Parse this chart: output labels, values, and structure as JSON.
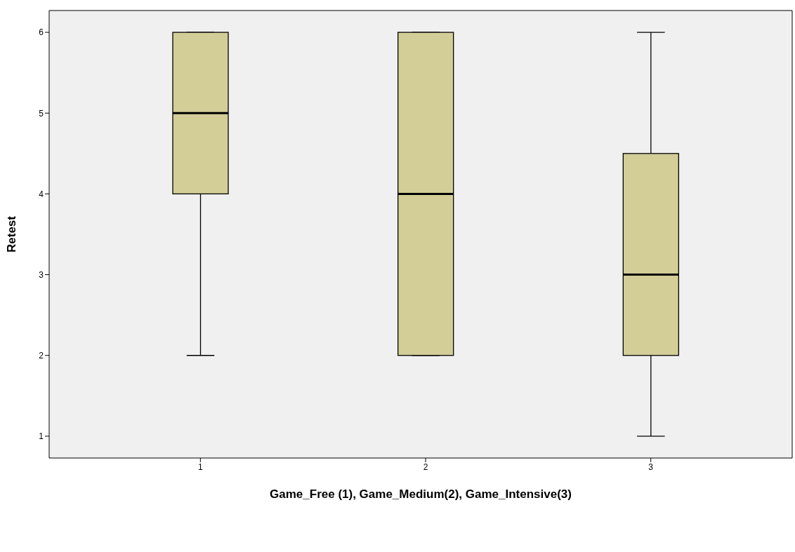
{
  "chart_data": {
    "type": "box",
    "xlabel": "Game_Free (1), Game_Medium(2), Game_Intensive(3)",
    "ylabel": "Retest",
    "categories": [
      "1",
      "2",
      "3"
    ],
    "color": "#d3cd98",
    "boxes": [
      {
        "low": 2,
        "q1": 4,
        "median": 5,
        "q3": 6,
        "high": 6
      },
      {
        "low": 2,
        "q1": 2,
        "median": 4,
        "q3": 6,
        "high": 6
      },
      {
        "low": 1,
        "q1": 2,
        "median": 3,
        "q3": 4.5,
        "high": 6
      }
    ],
    "ylim": [
      0.73,
      6.27
    ],
    "yticks": [
      1,
      2,
      3,
      4,
      5,
      6
    ]
  }
}
